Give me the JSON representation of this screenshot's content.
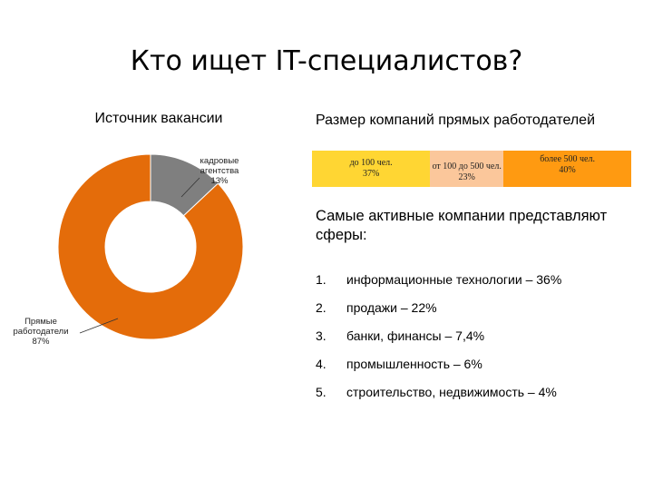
{
  "title": "Кто ищет IT-специалистов?",
  "left_heading": "Источник вакансии",
  "right_heading": "Размер компаний прямых работодателей",
  "colors": {
    "orange": "#e46c0a",
    "gray": "#7f7f7f",
    "yellow": "#ffd633",
    "peach": "#fbc79b",
    "amber": "#ff9a11"
  },
  "chart_data": [
    {
      "type": "pie",
      "title": "Источник вакансии",
      "slices": [
        {
          "label_lines": [
            "кадровые",
            "агентства",
            "13%"
          ],
          "value": 13,
          "color": "#7f7f7f"
        },
        {
          "label_lines": [
            "Прямые",
            "работодатели",
            "87%"
          ],
          "value": 87,
          "color": "#e46c0a"
        }
      ]
    },
    {
      "type": "bar",
      "title": "Размер компаний прямых работодателей",
      "segments": [
        {
          "label": "до 100 чел.",
          "percent": "37%",
          "value": 37,
          "color": "#ffd633"
        },
        {
          "label": "от 100 до 500 чел.",
          "percent": "23%",
          "value": 23,
          "color": "#fbc79b"
        },
        {
          "label": "более 500 чел.",
          "percent": "40%",
          "value": 40,
          "color": "#ff9a11"
        }
      ]
    }
  ],
  "spheres_heading": "Самые активные компании представляют сферы:",
  "spheres": [
    {
      "num": "1.",
      "text": "информационные технологии – 36%"
    },
    {
      "num": "2.",
      "text": "продажи – 22%"
    },
    {
      "num": "3.",
      "text": "банки, финансы – 7,4%"
    },
    {
      "num": "4.",
      "text": "промышленность – 6%"
    },
    {
      "num": "5.",
      "text": "строительство, недвижимость – 4%"
    }
  ]
}
